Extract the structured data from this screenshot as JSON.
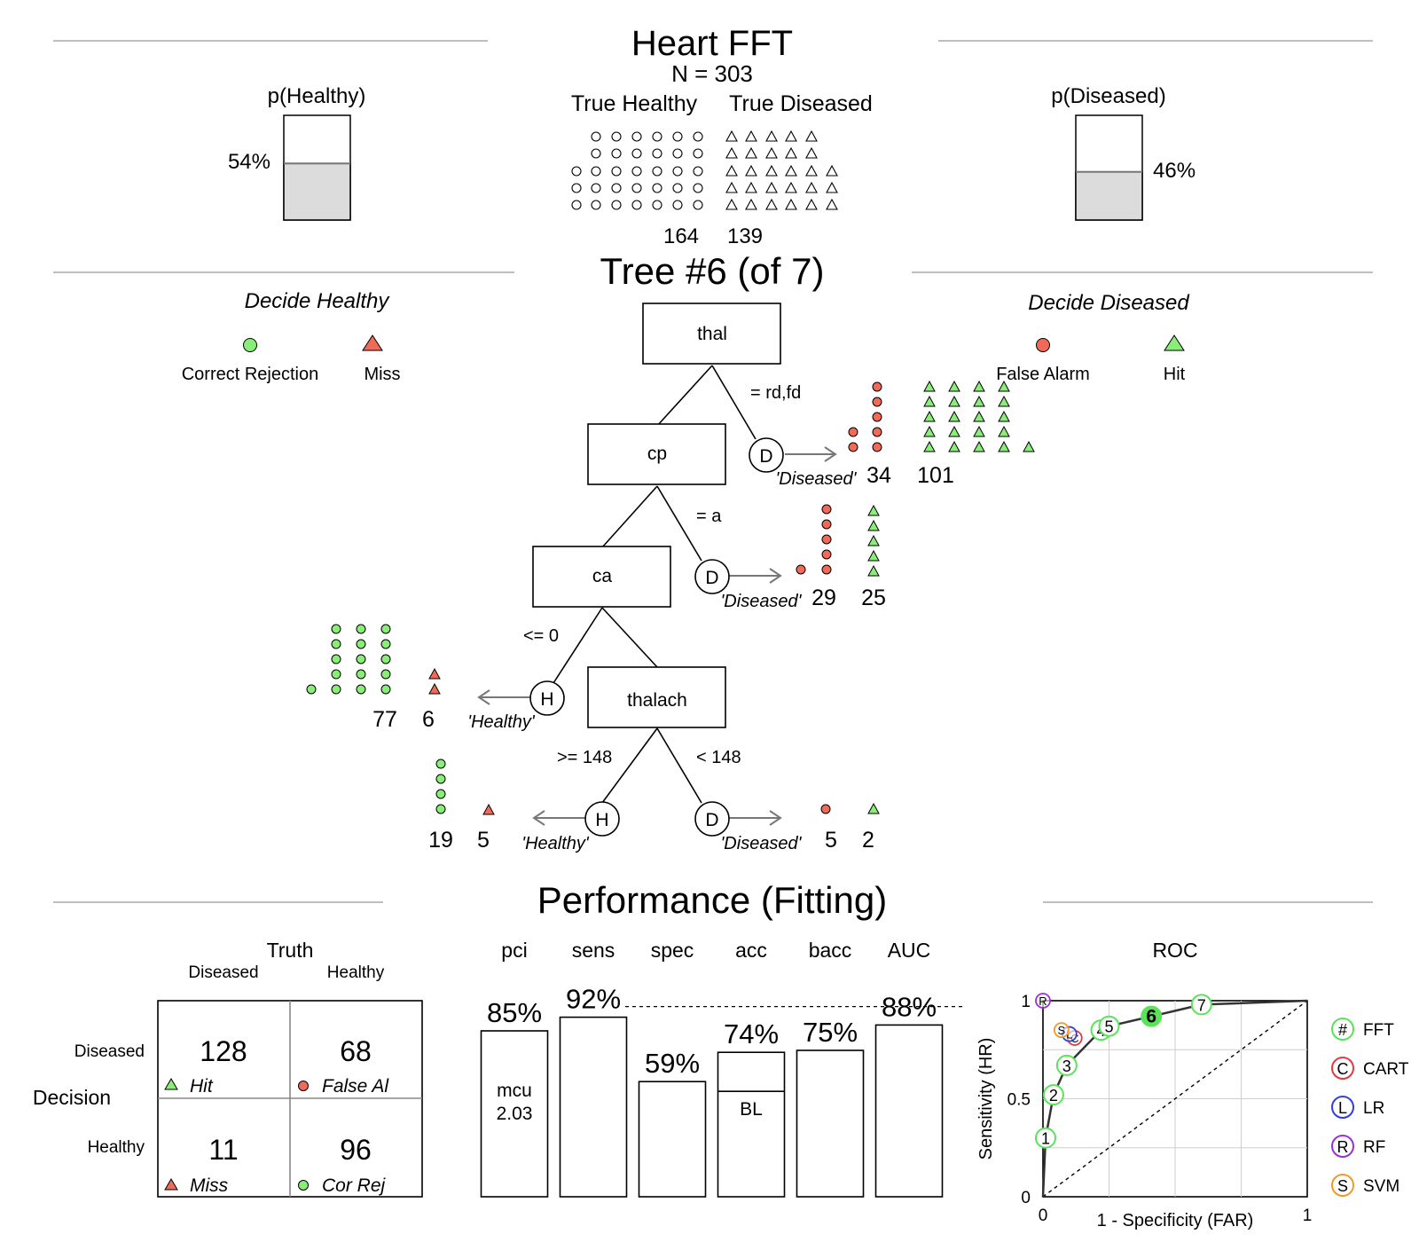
{
  "top": {
    "title": "Heart FFT",
    "n_label": "N = 303",
    "p_healthy": {
      "label": "p(Healthy)",
      "percent_label": "54%",
      "value": 0.54
    },
    "p_diseased": {
      "label": "p(Diseased)",
      "percent_label": "46%",
      "value": 0.46
    },
    "true_healthy": {
      "label": "True Healthy",
      "count": "164"
    },
    "true_diseased": {
      "label": "True Diseased",
      "count": "139"
    }
  },
  "tree": {
    "title": "Tree #6 (of 7)",
    "decide_healthy": "Decide Healthy",
    "decide_diseased": "Decide Diseased",
    "legend": {
      "correct_rejection": "Correct Rejection",
      "miss": "Miss",
      "false_alarm": "False Alarm",
      "hit": "Hit"
    },
    "nodes": {
      "n1": {
        "cue": "thal",
        "exit_cond": "= rd,fd",
        "exit_letter": "D",
        "exit_label": "'Diseased'",
        "count_a": "34",
        "count_b": "101"
      },
      "n2": {
        "cue": "cp",
        "exit_cond": "= a",
        "exit_letter": "D",
        "exit_label": "'Diseased'",
        "count_a": "29",
        "count_b": "25"
      },
      "n3": {
        "cue": "ca",
        "exit_cond": "<= 0",
        "exit_letter": "H",
        "exit_label": "'Healthy'",
        "count_a": "77",
        "count_b": "6"
      },
      "n4": {
        "cue": "thalach",
        "left_cond": ">= 148",
        "left_letter": "H",
        "left_label": "'Healthy'",
        "left_a": "19",
        "left_b": "5",
        "right_cond": "< 148",
        "right_letter": "D",
        "right_label": "'Diseased'",
        "right_a": "5",
        "right_b": "2"
      }
    }
  },
  "performance": {
    "title": "Performance (Fitting)",
    "confusion": {
      "truth": "Truth",
      "col_diseased": "Diseased",
      "col_healthy": "Healthy",
      "decision": "Decision",
      "row_diseased": "Diseased",
      "row_healthy": "Healthy",
      "hit": {
        "value": "128",
        "label": "Hit"
      },
      "false_alarm": {
        "value": "68",
        "label": "False Al"
      },
      "miss": {
        "value": "11",
        "label": "Miss"
      },
      "cor_rej": {
        "value": "96",
        "label": "Cor Rej"
      }
    },
    "mcu_label": "mcu",
    "mcu_value": "2.03",
    "bl_label": "BL",
    "roc_title": "ROC",
    "roc_xlabel": "1 - Specificity (FAR)",
    "roc_ylabel": "Sensitivity (HR)",
    "roc_legend": [
      {
        "symbol": "#",
        "name": "FFT",
        "color": "#5ae35a"
      },
      {
        "symbol": "C",
        "name": "CART",
        "color": "#e23b3b"
      },
      {
        "symbol": "L",
        "name": "LR",
        "color": "#2f3fe0"
      },
      {
        "symbol": "R",
        "name": "RF",
        "color": "#9b30d9"
      },
      {
        "symbol": "S",
        "name": "SVM",
        "color": "#f09a2a"
      }
    ]
  },
  "chart_data": [
    {
      "type": "bar",
      "categories": [
        "pci",
        "sens",
        "spec",
        "acc",
        "bacc",
        "AUC"
      ],
      "values": [
        0.85,
        0.92,
        0.59,
        0.74,
        0.75,
        0.88
      ],
      "labels": [
        "85%",
        "92%",
        "59%",
        "74%",
        "75%",
        "88%"
      ],
      "ylim": [
        0,
        1
      ],
      "baseline_acc": 0.54,
      "reference_line": 0.92
    },
    {
      "type": "line",
      "title": "ROC",
      "xlabel": "1 - Specificity (FAR)",
      "ylabel": "Sensitivity (HR)",
      "xlim": [
        0,
        1
      ],
      "ylim": [
        0,
        1
      ],
      "x_ticks": [
        "0",
        "1"
      ],
      "y_ticks": [
        "0",
        "0.5",
        "1"
      ],
      "grid": true,
      "fft_points": [
        {
          "label": "1",
          "x": 0.01,
          "y": 0.3
        },
        {
          "label": "2",
          "x": 0.04,
          "y": 0.52
        },
        {
          "label": "3",
          "x": 0.09,
          "y": 0.67
        },
        {
          "label": "4",
          "x": 0.22,
          "y": 0.85
        },
        {
          "label": "5",
          "x": 0.25,
          "y": 0.87
        },
        {
          "label": "6",
          "x": 0.41,
          "y": 0.92
        },
        {
          "label": "7",
          "x": 0.6,
          "y": 0.98
        }
      ],
      "highlight": "6",
      "other_models": [
        {
          "symbol": "C",
          "x": 0.12,
          "y": 0.81
        },
        {
          "symbol": "L",
          "x": 0.1,
          "y": 0.83
        },
        {
          "symbol": "S",
          "x": 0.07,
          "y": 0.85
        },
        {
          "symbol": "R",
          "x": 0.0,
          "y": 1.0
        }
      ]
    }
  ]
}
